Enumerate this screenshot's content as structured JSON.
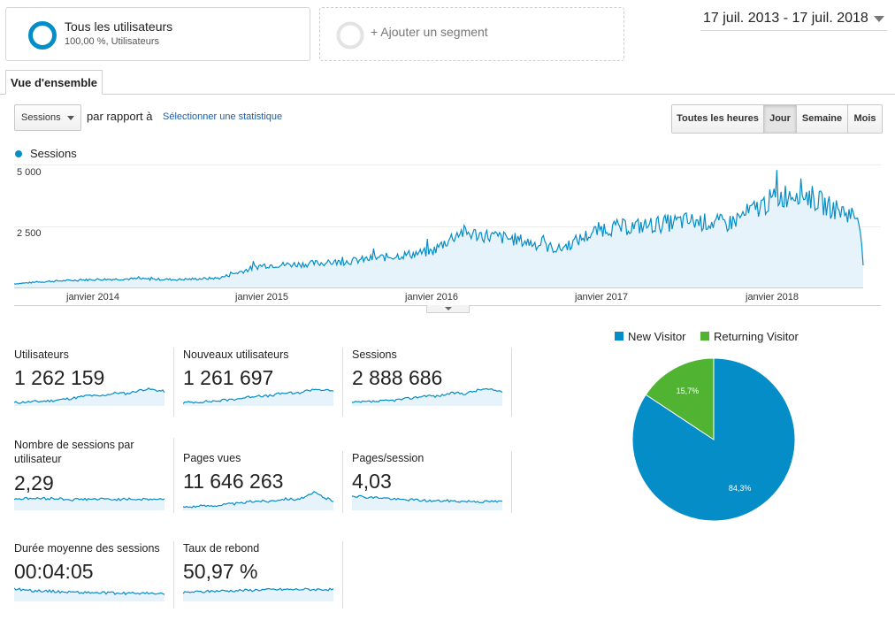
{
  "segments": {
    "active": {
      "name": "Tous les utilisateurs",
      "sub": "100,00 %, Utilisateurs"
    },
    "add_label": "+ Ajouter un segment"
  },
  "date_range": "17 juil. 2013 - 17 juil. 2018",
  "tab": "Vue d'ensemble",
  "controls": {
    "metric_select": "Sessions",
    "compare_label": "par rapport à",
    "select_metric_link": "Sélectionner une statistique",
    "granularity": [
      {
        "label": "Toutes les heures",
        "active": false
      },
      {
        "label": "Jour",
        "active": true
      },
      {
        "label": "Semaine",
        "active": false
      },
      {
        "label": "Mois",
        "active": false
      }
    ]
  },
  "colors": {
    "accent": "#058dc7",
    "returning": "#50b432",
    "area": "#e6f3fb"
  },
  "chart_data": [
    {
      "type": "area",
      "series": [
        {
          "name": "Sessions",
          "x": [
            "2013-07-17",
            "2013-10-01",
            "2014-01-01",
            "2014-04-01",
            "2014-07-01",
            "2014-10-01",
            "2015-01-01",
            "2015-04-01",
            "2015-07-01",
            "2015-10-01",
            "2016-01-01",
            "2016-03-01",
            "2016-07-01",
            "2016-10-01",
            "2017-01-01",
            "2017-04-01",
            "2017-07-01",
            "2017-10-01",
            "2018-01-01",
            "2018-03-01",
            "2018-05-01",
            "2018-07-10",
            "2018-07-17"
          ],
          "values": [
            150,
            250,
            320,
            350,
            320,
            380,
            900,
            950,
            1050,
            1250,
            1450,
            2250,
            1950,
            1550,
            2400,
            2500,
            2700,
            2600,
            3550,
            3950,
            3300,
            2850,
            900
          ]
        }
      ],
      "x_tick_labels": [
        "janvier 2014",
        "janvier 2015",
        "janvier 2016",
        "janvier 2017",
        "janvier 2018"
      ],
      "y_tick_labels": [
        "5 000",
        "2 500"
      ],
      "ylim": [
        0,
        5000
      ],
      "legend": "top-left",
      "grid": true
    },
    {
      "type": "pie",
      "legend": "top",
      "slices": [
        {
          "name": "New Visitor",
          "value": 84.3,
          "label": "84,3%",
          "color": "#058dc7"
        },
        {
          "name": "Returning Visitor",
          "value": 15.7,
          "label": "15,7%",
          "color": "#50b432"
        }
      ]
    }
  ],
  "metrics": [
    {
      "label": "Utilisateurs",
      "value": "1 262 159",
      "trend": [
        0.15,
        0.18,
        0.2,
        0.22,
        0.25,
        0.3,
        0.35,
        0.42,
        0.5,
        0.45,
        0.55,
        0.62,
        0.58,
        0.7,
        0.8,
        0.75,
        0.68
      ]
    },
    {
      "label": "Nouveaux utilisateurs",
      "value": "1 261 697",
      "trend": [
        0.15,
        0.18,
        0.2,
        0.22,
        0.25,
        0.3,
        0.35,
        0.42,
        0.5,
        0.45,
        0.55,
        0.62,
        0.58,
        0.7,
        0.8,
        0.75,
        0.68
      ]
    },
    {
      "label": "Sessions",
      "value": "2 888 686",
      "trend": [
        0.15,
        0.18,
        0.2,
        0.22,
        0.25,
        0.3,
        0.35,
        0.42,
        0.5,
        0.45,
        0.55,
        0.62,
        0.58,
        0.7,
        0.8,
        0.75,
        0.68
      ]
    },
    {
      "label": "Nombre de sessions par utilisateur",
      "value": "2,29",
      "trend": [
        0.55,
        0.55,
        0.56,
        0.55,
        0.56,
        0.55,
        0.5,
        0.52,
        0.53,
        0.52,
        0.53,
        0.52,
        0.52,
        0.53,
        0.52,
        0.53,
        0.52
      ]
    },
    {
      "label": "Pages vues",
      "value": "11 646 263",
      "trend": [
        0.15,
        0.18,
        0.2,
        0.22,
        0.25,
        0.3,
        0.32,
        0.4,
        0.45,
        0.42,
        0.5,
        0.55,
        0.52,
        0.6,
        0.85,
        0.6,
        0.45
      ]
    },
    {
      "label": "Pages/session",
      "value": "4,03",
      "trend": [
        0.7,
        0.65,
        0.6,
        0.6,
        0.55,
        0.5,
        0.5,
        0.48,
        0.45,
        0.44,
        0.45,
        0.43,
        0.42,
        0.43,
        0.4,
        0.42,
        0.4
      ]
    },
    {
      "label": "Durée moyenne des sessions",
      "value": "00:04:05",
      "trend": [
        0.6,
        0.55,
        0.5,
        0.5,
        0.48,
        0.45,
        0.45,
        0.42,
        0.42,
        0.4,
        0.4,
        0.38,
        0.38,
        0.4,
        0.38,
        0.36,
        0.35
      ]
    },
    {
      "label": "Taux de rebond",
      "value": "50,97 %",
      "trend": [
        0.4,
        0.45,
        0.45,
        0.48,
        0.5,
        0.5,
        0.52,
        0.52,
        0.55,
        0.55,
        0.56,
        0.56,
        0.56,
        0.57,
        0.56,
        0.57,
        0.56
      ]
    }
  ]
}
